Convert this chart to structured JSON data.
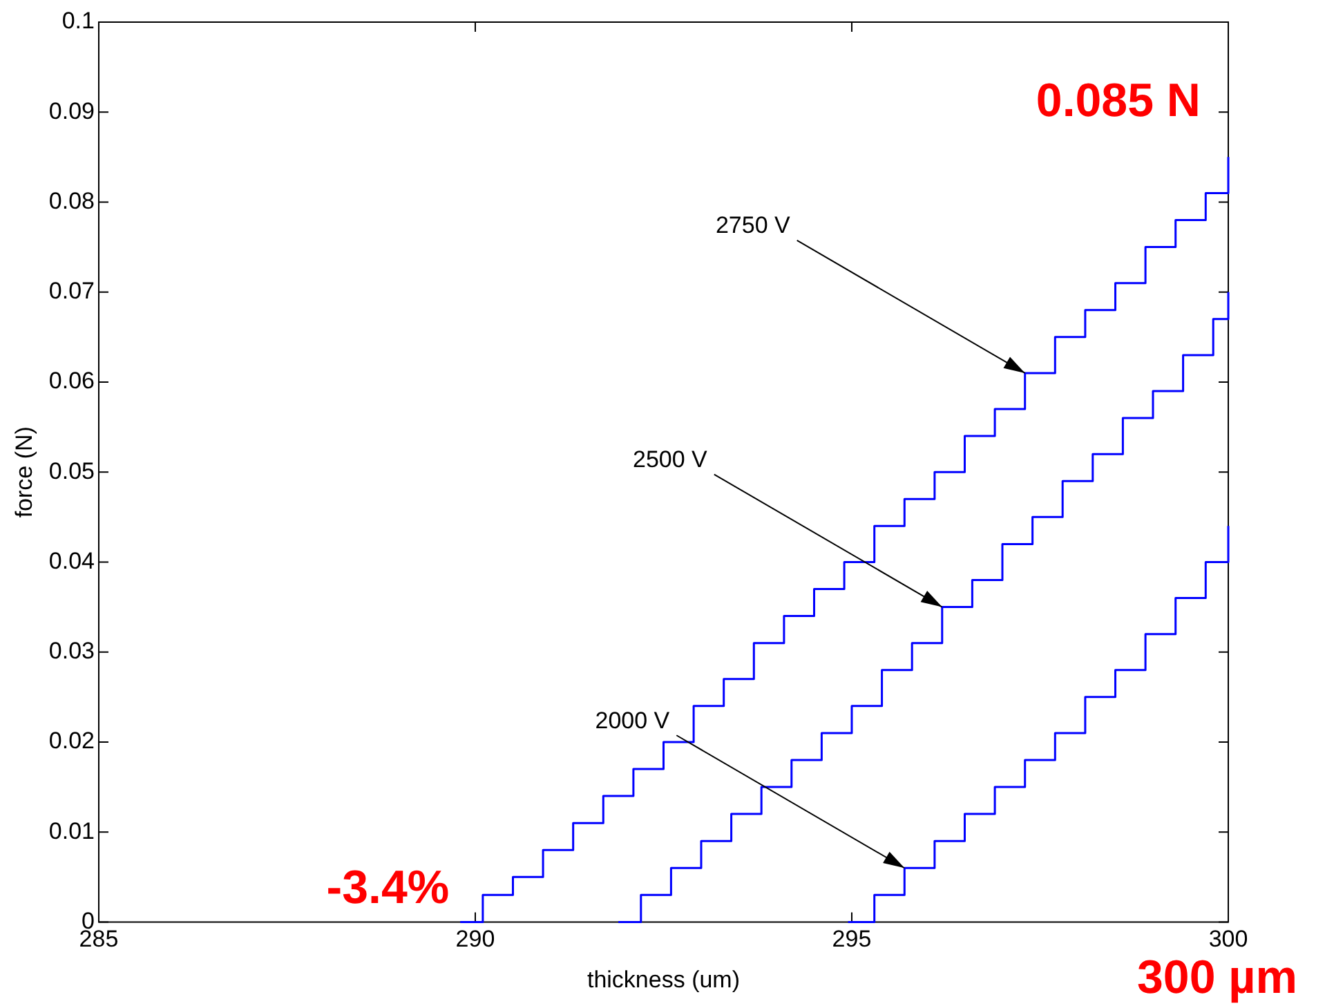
{
  "chart_data": {
    "type": "step",
    "xlabel": "thickness (um)",
    "ylabel": "force (N)",
    "xlim": [
      285,
      300
    ],
    "xticks": [
      285,
      290,
      295,
      300
    ],
    "ylim": [
      0,
      0.1
    ],
    "yticks": [
      0,
      0.01,
      0.02,
      0.03,
      0.04,
      0.05,
      0.06,
      0.07,
      0.08,
      0.09,
      0.1
    ],
    "grid": false,
    "legend": false,
    "marker": "none",
    "line_style": "solid",
    "series": [
      {
        "color": "#0000ff",
        "x": [
          289.8,
          290.1,
          290.5,
          290.9,
          291.3,
          291.7,
          292.1,
          292.5,
          292.9,
          293.3,
          293.7,
          294.1,
          294.5,
          294.9,
          295.3,
          295.7,
          296.1,
          296.5,
          296.9,
          297.3,
          297.7,
          298.1,
          298.5,
          298.9,
          299.3,
          299.7,
          300
        ],
        "values": [
          0,
          0.003,
          0.005,
          0.008,
          0.011,
          0.014,
          0.017,
          0.02,
          0.024,
          0.027,
          0.031,
          0.034,
          0.037,
          0.04,
          0.044,
          0.047,
          0.05,
          0.054,
          0.057,
          0.061,
          0.065,
          0.068,
          0.071,
          0.075,
          0.078,
          0.081,
          0.085
        ]
      },
      {
        "color": "#0000ff",
        "x": [
          291.9,
          292.2,
          292.6,
          293,
          293.4,
          293.8,
          294.2,
          294.6,
          295,
          295.4,
          295.8,
          296.2,
          296.6,
          297,
          297.4,
          297.8,
          298.2,
          298.6,
          299,
          299.4,
          299.8,
          300
        ],
        "values": [
          0,
          0.003,
          0.006,
          0.009,
          0.012,
          0.015,
          0.018,
          0.021,
          0.024,
          0.028,
          0.031,
          0.035,
          0.038,
          0.042,
          0.045,
          0.049,
          0.052,
          0.056,
          0.059,
          0.063,
          0.067,
          0.07
        ]
      },
      {
        "color": "#0000ff",
        "x": [
          294.95,
          295.3,
          295.7,
          296.1,
          296.5,
          296.9,
          297.3,
          297.7,
          298.1,
          298.5,
          298.9,
          299.3,
          299.7,
          300
        ],
        "values": [
          0,
          0.003,
          0.006,
          0.009,
          0.012,
          0.015,
          0.018,
          0.021,
          0.025,
          0.028,
          0.032,
          0.036,
          0.04,
          0.044
        ]
      }
    ],
    "annotations": [
      {
        "text": "2750 V",
        "x": 297.3,
        "y": 0.061
      },
      {
        "text": "2500 V",
        "x": 296.2,
        "y": 0.035
      },
      {
        "text": "2000 V",
        "x": 295.7,
        "y": 0.006
      },
      {
        "text": "0.085 N",
        "x": 300,
        "y": 0.085
      },
      {
        "text": "-3.4%",
        "x": 289.8,
        "y": 0
      },
      "300 µm"
    ]
  }
}
